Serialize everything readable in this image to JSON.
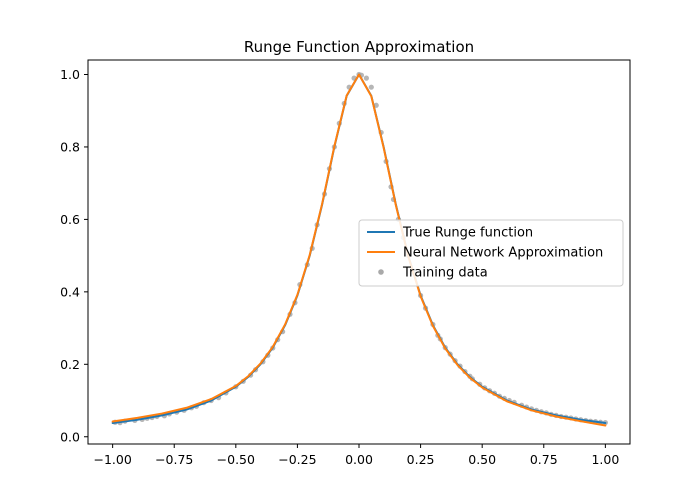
{
  "chart_data": {
    "type": "line",
    "title": "Runge Function Approximation",
    "xlabel": "",
    "ylabel": "",
    "xlim": [
      -1.1,
      1.1
    ],
    "ylim": [
      -0.02,
      1.04
    ],
    "xticks": [
      -1.0,
      -0.75,
      -0.5,
      -0.25,
      0.0,
      0.25,
      0.5,
      0.75,
      1.0
    ],
    "xtick_labels": [
      "−1.00",
      "−0.75",
      "−0.50",
      "−0.25",
      "0.00",
      "0.25",
      "0.50",
      "0.75",
      "1.00"
    ],
    "yticks": [
      0.0,
      0.2,
      0.4,
      0.6,
      0.8,
      1.0
    ],
    "ytick_labels": [
      "0.0",
      "0.2",
      "0.4",
      "0.6",
      "0.8",
      "1.0"
    ],
    "grid": false,
    "legend_position": "center-right",
    "series": [
      {
        "name": "True Runge function",
        "kind": "line",
        "color": "#1f77b4",
        "x": [
          -1.0,
          -0.9,
          -0.8,
          -0.7,
          -0.6,
          -0.5,
          -0.45,
          -0.4,
          -0.35,
          -0.3,
          -0.25,
          -0.2,
          -0.15,
          -0.1,
          -0.05,
          0.0,
          0.05,
          0.1,
          0.15,
          0.2,
          0.25,
          0.3,
          0.35,
          0.4,
          0.45,
          0.5,
          0.6,
          0.7,
          0.8,
          0.9,
          1.0
        ],
        "y": [
          0.038,
          0.047,
          0.059,
          0.075,
          0.1,
          0.138,
          0.165,
          0.2,
          0.246,
          0.308,
          0.39,
          0.5,
          0.64,
          0.8,
          0.941,
          1.0,
          0.941,
          0.8,
          0.64,
          0.5,
          0.39,
          0.308,
          0.246,
          0.2,
          0.165,
          0.138,
          0.1,
          0.075,
          0.059,
          0.047,
          0.038
        ]
      },
      {
        "name": "Neural Network Approximation",
        "kind": "line",
        "color": "#ff7f0e",
        "x": [
          -1.0,
          -0.9,
          -0.8,
          -0.7,
          -0.6,
          -0.5,
          -0.45,
          -0.4,
          -0.35,
          -0.3,
          -0.25,
          -0.2,
          -0.15,
          -0.1,
          -0.05,
          0.0,
          0.05,
          0.1,
          0.15,
          0.2,
          0.25,
          0.3,
          0.35,
          0.4,
          0.45,
          0.5,
          0.6,
          0.7,
          0.8,
          0.9,
          1.0
        ],
        "y": [
          0.042,
          0.052,
          0.064,
          0.08,
          0.104,
          0.14,
          0.167,
          0.202,
          0.248,
          0.31,
          0.392,
          0.502,
          0.642,
          0.802,
          0.942,
          1.0,
          0.94,
          0.798,
          0.638,
          0.498,
          0.388,
          0.306,
          0.244,
          0.198,
          0.163,
          0.136,
          0.098,
          0.073,
          0.056,
          0.043,
          0.031
        ]
      },
      {
        "name": "Training data",
        "kind": "scatter",
        "color": "#a9a9a9",
        "x": [
          -0.99,
          -0.97,
          -0.95,
          -0.91,
          -0.88,
          -0.86,
          -0.84,
          -0.82,
          -0.79,
          -0.77,
          -0.74,
          -0.71,
          -0.68,
          -0.66,
          -0.63,
          -0.6,
          -0.57,
          -0.54,
          -0.5,
          -0.47,
          -0.44,
          -0.42,
          -0.39,
          -0.37,
          -0.35,
          -0.33,
          -0.31,
          -0.28,
          -0.26,
          -0.24,
          -0.21,
          -0.19,
          -0.17,
          -0.14,
          -0.12,
          -0.1,
          -0.08,
          -0.06,
          -0.04,
          -0.02,
          0.0,
          0.01,
          0.03,
          0.05,
          0.07,
          0.09,
          0.11,
          0.13,
          0.14,
          0.16,
          0.18,
          0.2,
          0.22,
          0.25,
          0.27,
          0.3,
          0.32,
          0.33,
          0.35,
          0.37,
          0.39,
          0.41,
          0.43,
          0.45,
          0.46,
          0.49,
          0.51,
          0.53,
          0.55,
          0.57,
          0.59,
          0.61,
          0.63,
          0.66,
          0.68,
          0.7,
          0.72,
          0.74,
          0.76,
          0.78,
          0.8,
          0.82,
          0.84,
          0.86,
          0.88,
          0.9,
          0.92,
          0.94,
          0.96,
          0.98,
          1.0
        ],
        "y": [
          0.04,
          0.039,
          0.043,
          0.045,
          0.048,
          0.051,
          0.053,
          0.056,
          0.058,
          0.063,
          0.068,
          0.073,
          0.08,
          0.084,
          0.094,
          0.1,
          0.108,
          0.121,
          0.138,
          0.153,
          0.17,
          0.185,
          0.207,
          0.225,
          0.245,
          0.268,
          0.29,
          0.338,
          0.37,
          0.42,
          0.475,
          0.52,
          0.585,
          0.67,
          0.74,
          0.8,
          0.865,
          0.92,
          0.965,
          0.99,
          1.0,
          0.998,
          0.99,
          0.965,
          0.915,
          0.84,
          0.76,
          0.69,
          0.655,
          0.6,
          0.55,
          0.5,
          0.455,
          0.39,
          0.355,
          0.31,
          0.28,
          0.27,
          0.246,
          0.228,
          0.21,
          0.195,
          0.18,
          0.167,
          0.16,
          0.145,
          0.135,
          0.127,
          0.12,
          0.112,
          0.106,
          0.1,
          0.095,
          0.087,
          0.082,
          0.077,
          0.073,
          0.069,
          0.066,
          0.062,
          0.059,
          0.056,
          0.054,
          0.052,
          0.049,
          0.047,
          0.045,
          0.043,
          0.042,
          0.04,
          0.039
        ]
      }
    ]
  }
}
